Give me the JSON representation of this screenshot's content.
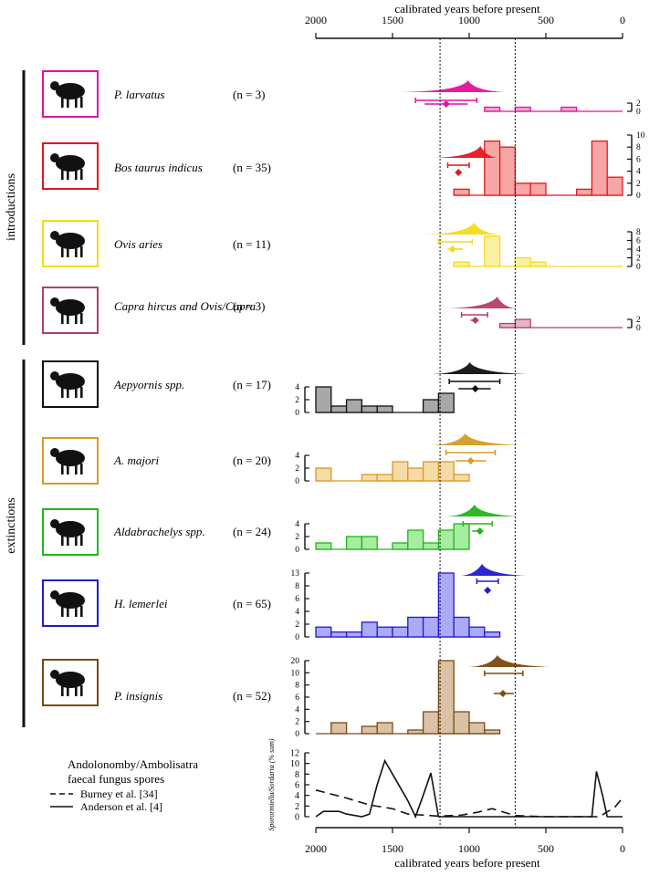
{
  "axis": {
    "top_label": "calibrated years before present",
    "bottom_label": "calibrated years before present",
    "ticks": [
      "2000",
      "1500",
      "1000",
      "500",
      "0"
    ]
  },
  "groups": {
    "introductions": "introductions",
    "extinctions": "extinctions"
  },
  "n_labels": [
    "(n = 3)",
    "(n = 35)",
    "(n = 11)",
    "(n = 3)",
    "(n = 17)",
    "(n = 20)",
    "(n = 24)",
    "(n = 65)",
    "(n = 52)"
  ],
  "species": [
    {
      "name": "P. larvatus",
      "color": "#e6119b",
      "fill": "#f6a6d8",
      "icon": "bush-pig-silhouette-icon"
    },
    {
      "name": "Bos taurus indicus",
      "color": "#e4161c",
      "fill": "#f7a5a5",
      "icon": "zebu-silhouette-icon"
    },
    {
      "name": "Ovis aries",
      "color": "#f2dc1a",
      "fill": "#faf0a2",
      "icon": "sheep-silhouette-icon"
    },
    {
      "name": "Capra hircus and Ovis/Capra",
      "color": "#b53d6a",
      "fill": "#e6b6c8",
      "icon": "goat-silhouette-icon"
    },
    {
      "name": "Aepyornis spp.",
      "color": "#111111",
      "fill": "#a8a8a8",
      "icon": "elephant-bird-silhouette-icon"
    },
    {
      "name": "A. majori",
      "color": "#d89a26",
      "fill": "#f5dba6",
      "icon": "lemur-silhouette-icon"
    },
    {
      "name": "Aldabrachelys spp.",
      "color": "#20b61a",
      "fill": "#a6eda0",
      "icon": "tortoise-silhouette-icon"
    },
    {
      "name": "H. lemerlei",
      "color": "#2418d2",
      "fill": "#aaaaf6",
      "icon": "hippopotamus-silhouette-icon"
    },
    {
      "name": "P. insignis",
      "color": "#7a4a10",
      "fill": "#d9c2a6",
      "icon": "fossa-silhouette-icon"
    }
  ],
  "chart_data": {
    "type": "bar",
    "x_unit": "calibrated years before present",
    "xlim": [
      2000,
      0
    ],
    "bin_width": 100,
    "reference_lines_bp": [
      1190,
      700
    ],
    "panels": [
      {
        "species": "P. larvatus",
        "n": 3,
        "bins_start_bp": [
          900,
          700,
          400
        ],
        "counts": [
          1,
          1,
          1
        ],
        "yticks": [
          "2",
          "0"
        ],
        "ymax": 2,
        "age_range_bp": [
          1790,
          800
        ],
        "onset_estimate_bp": 1150,
        "onset_interval_bp": [
          1350,
          950
        ]
      },
      {
        "species": "Bos taurus indicus",
        "n": 35,
        "bins_start_bp": [
          1100,
          900,
          800,
          700,
          600,
          300,
          200,
          100
        ],
        "counts": [
          1,
          9,
          8,
          2,
          2,
          1,
          9,
          3
        ],
        "yticks": [
          "10",
          "8",
          "6",
          "4",
          "2",
          "0"
        ],
        "ymax": 10,
        "onset_estimate_bp": 1070,
        "onset_interval_bp": [
          1140,
          1000
        ]
      },
      {
        "species": "Ovis aries",
        "n": 11,
        "bins_start_bp": [
          1100,
          900,
          700,
          600
        ],
        "counts": [
          1,
          7,
          2,
          1
        ],
        "yticks": [
          "8",
          "6",
          "4",
          "2",
          "0"
        ],
        "ymax": 8,
        "onset_estimate_bp": 1110,
        "onset_interval_bp": [
          1200,
          980
        ]
      },
      {
        "species": "Capra hircus and Ovis/Capra",
        "n": 3,
        "bins_start_bp": [
          800,
          700
        ],
        "counts": [
          1,
          2
        ],
        "yticks": [
          "2",
          "0"
        ],
        "ymax": 2,
        "onset_estimate_bp": 960,
        "onset_interval_bp": [
          1050,
          880
        ]
      },
      {
        "species": "Aepyornis spp.",
        "n": 17,
        "bins_start_bp": [
          2000,
          1900,
          1800,
          1700,
          1600,
          1300,
          1200
        ],
        "counts": [
          4,
          1,
          2,
          1,
          1,
          2,
          3
        ],
        "yticks": [
          "4",
          "2",
          "0"
        ],
        "ymax": 4,
        "extinction_estimate_bp": 960,
        "extinction_interval_bp": [
          1130,
          800
        ]
      },
      {
        "species": "A. majori",
        "n": 20,
        "bins_start_bp": [
          2000,
          1700,
          1600,
          1500,
          1400,
          1300,
          1200,
          1100
        ],
        "counts": [
          2,
          1,
          1,
          3,
          2,
          3,
          3,
          1
        ],
        "yticks": [
          "4",
          "2",
          "0"
        ],
        "ymax": 4,
        "extinction_estimate_bp": 990,
        "extinction_interval_bp": [
          1150,
          830
        ]
      },
      {
        "species": "Aldabrachelys spp.",
        "n": 24,
        "bins_start_bp": [
          2000,
          1800,
          1700,
          1500,
          1400,
          1300,
          1200,
          1100
        ],
        "counts": [
          1,
          2,
          2,
          1,
          3,
          1,
          3,
          4
        ],
        "yticks": [
          "4",
          "2",
          "0"
        ],
        "ymax": 4,
        "extinction_estimate_bp": 930,
        "extinction_interval_bp": [
          1040,
          850
        ]
      },
      {
        "species": "H. lemerlei",
        "n": 65,
        "bins_start_bp": [
          2000,
          1900,
          1800,
          1700,
          1600,
          1500,
          1400,
          1300,
          1200,
          1100,
          1000,
          900
        ],
        "counts": [
          2,
          1,
          1,
          3,
          2,
          2,
          4,
          4,
          13,
          4,
          2,
          1
        ],
        "yticks": [
          "13",
          "8",
          "6",
          "4",
          "2",
          "0"
        ],
        "ymax": 13,
        "extinction_estimate_bp": 880,
        "extinction_interval_bp": [
          950,
          810
        ]
      },
      {
        "species": "P. insignis",
        "n": 52,
        "bins_start_bp": [
          1900,
          1700,
          1600,
          1400,
          1300,
          1200,
          1100,
          1000,
          900
        ],
        "counts": [
          3,
          2,
          3,
          1,
          6,
          20,
          6,
          3,
          1
        ],
        "yticks": [
          "20",
          "10",
          "8",
          "6",
          "4",
          "2",
          "0"
        ],
        "ymax": 20,
        "extinction_estimate_bp": 780,
        "extinction_interval_bp": [
          900,
          650
        ]
      }
    ],
    "fungus": {
      "title_lines": [
        "Andolonomby/Ambolisatra",
        "faecal fungus spores"
      ],
      "ylabel": "Sporormiella/Sordaria (% sum)",
      "yticks": [
        "12",
        "10",
        "8",
        "6",
        "4",
        "2",
        "0"
      ],
      "ylim": [
        0,
        12
      ],
      "series": [
        {
          "name": "Burney et al. [34]",
          "style": "dashed",
          "x": [
            2000,
            1800,
            1650,
            1500,
            1400,
            1200,
            1050,
            950,
            850,
            700,
            500,
            300,
            150,
            50,
            0
          ],
          "y": [
            5,
            3.5,
            2.2,
            1.5,
            0.5,
            0.1,
            0.3,
            0.8,
            1.5,
            0.2,
            0,
            0,
            0,
            1.8,
            3.5
          ]
        },
        {
          "name": "Anderson et al. [4]",
          "style": "solid",
          "x": [
            2000,
            1950,
            1900,
            1850,
            1800,
            1700,
            1650,
            1600,
            1550,
            1500,
            1450,
            1400,
            1350,
            1300,
            1250,
            1200,
            1100,
            1000,
            900,
            800,
            700,
            600,
            500,
            400,
            300,
            250,
            200,
            170,
            130,
            100,
            60,
            30,
            0
          ],
          "y": [
            0,
            1,
            1,
            1,
            0.5,
            0,
            0.5,
            6,
            10.5,
            8,
            5.5,
            3,
            0,
            4,
            8.2,
            0,
            0,
            0,
            0,
            0,
            0,
            0,
            0,
            0,
            0,
            0,
            0,
            8.5,
            4,
            0,
            0,
            0,
            0
          ]
        }
      ]
    }
  }
}
